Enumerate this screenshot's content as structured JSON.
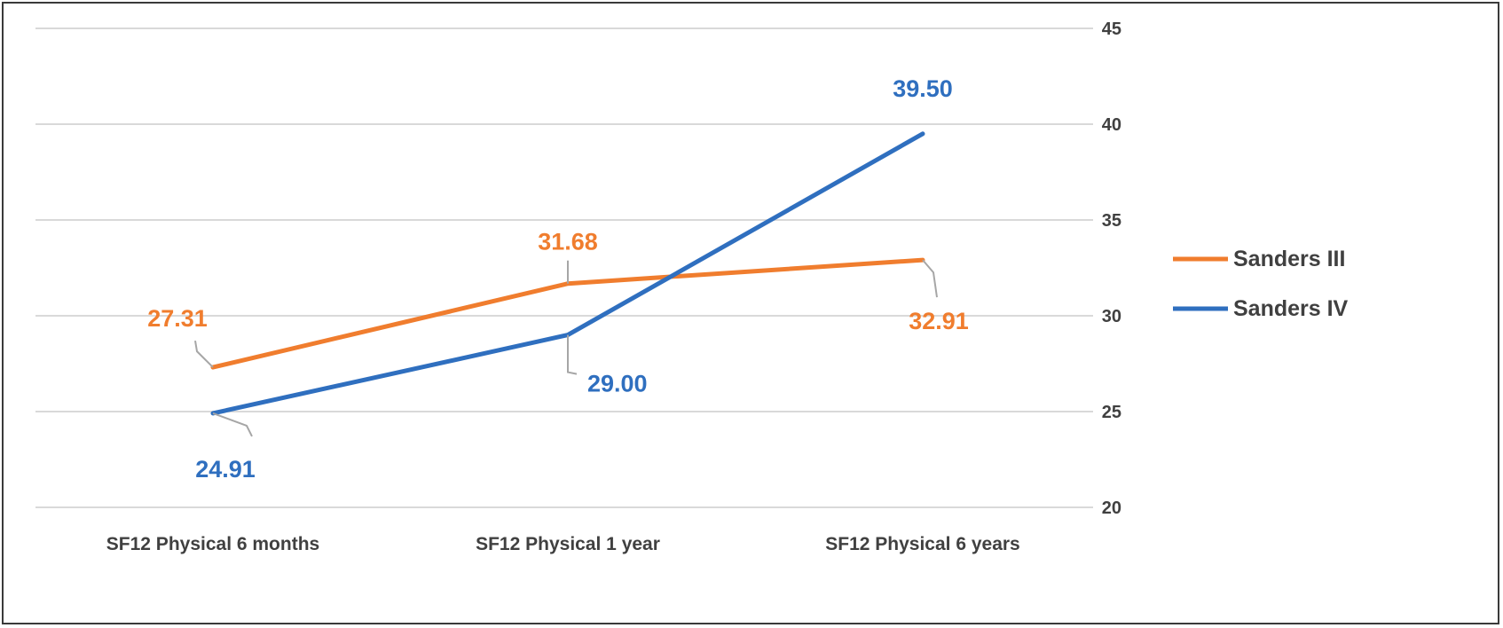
{
  "chart_data": {
    "type": "line",
    "categories": [
      "SF12 Physical 6 months",
      "SF12 Physical 1 year",
      "SF12 Physical 6 years"
    ],
    "series": [
      {
        "name": "Sanders III",
        "values": [
          27.31,
          31.68,
          32.91
        ],
        "labels": [
          "27.31",
          "31.68",
          "32.91"
        ],
        "color": "#F07D2E"
      },
      {
        "name": "Sanders IV",
        "values": [
          24.91,
          29.0,
          39.5
        ],
        "labels": [
          "24.91",
          "29.00",
          "39.50"
        ],
        "color": "#2F6FBF"
      }
    ],
    "y_ticks": [
      "20",
      "25",
      "30",
      "35",
      "40",
      "45"
    ],
    "ylim": [
      20,
      45
    ],
    "y_axis_side": "right",
    "grid": true,
    "legend_position": "right",
    "title": "",
    "xlabel": "",
    "ylabel": ""
  }
}
